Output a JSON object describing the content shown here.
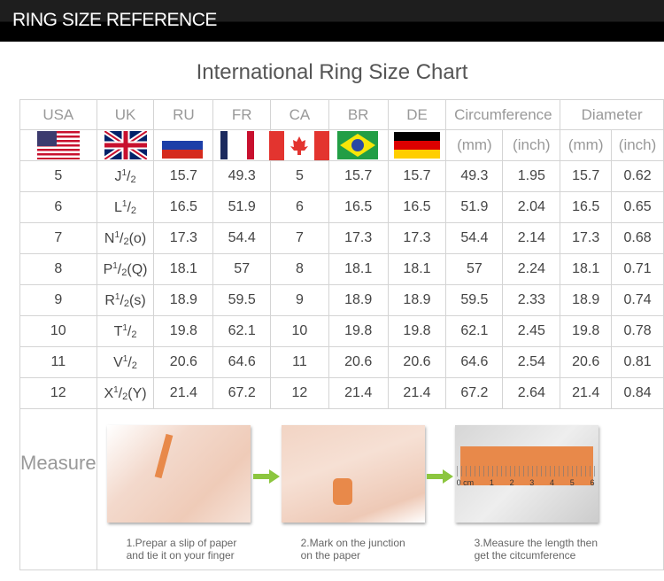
{
  "header": {
    "title": "RING SIZE REFERENCE"
  },
  "chart_title": "International Ring Size Chart",
  "columns": [
    "USA",
    "UK",
    "RU",
    "FR",
    "CA",
    "BR",
    "DE",
    "Circumference",
    "Diameter"
  ],
  "units": {
    "mm": "(mm)",
    "inch": "(inch)"
  },
  "flags": [
    "us-flag",
    "uk-flag",
    "russia-flag",
    "france-flag",
    "canada-flag",
    "brazil-flag",
    "germany-flag"
  ],
  "rows": [
    {
      "usa": "5",
      "uk": {
        "letter": "J",
        "num": "1",
        "den": "2",
        "suffix": ""
      },
      "ru": "15.7",
      "fr": "49.3",
      "ca": "5",
      "br": "15.7",
      "de": "15.7",
      "circ_mm": "49.3",
      "circ_in": "1.95",
      "dia_mm": "15.7",
      "dia_in": "0.62"
    },
    {
      "usa": "6",
      "uk": {
        "letter": "L",
        "num": "1",
        "den": "2",
        "suffix": ""
      },
      "ru": "16.5",
      "fr": "51.9",
      "ca": "6",
      "br": "16.5",
      "de": "16.5",
      "circ_mm": "51.9",
      "circ_in": "2.04",
      "dia_mm": "16.5",
      "dia_in": "0.65"
    },
    {
      "usa": "7",
      "uk": {
        "letter": "N",
        "num": "1",
        "den": "2",
        "suffix": "(o)"
      },
      "ru": "17.3",
      "fr": "54.4",
      "ca": "7",
      "br": "17.3",
      "de": "17.3",
      "circ_mm": "54.4",
      "circ_in": "2.14",
      "dia_mm": "17.3",
      "dia_in": "0.68"
    },
    {
      "usa": "8",
      "uk": {
        "letter": "P",
        "num": "1",
        "den": "2",
        "suffix": "(Q)"
      },
      "ru": "18.1",
      "fr": "57",
      "ca": "8",
      "br": "18.1",
      "de": "18.1",
      "circ_mm": "57",
      "circ_in": "2.24",
      "dia_mm": "18.1",
      "dia_in": "0.71"
    },
    {
      "usa": "9",
      "uk": {
        "letter": "R",
        "num": "1",
        "den": "2",
        "suffix": "(s)"
      },
      "ru": "18.9",
      "fr": "59.5",
      "ca": "9",
      "br": "18.9",
      "de": "18.9",
      "circ_mm": "59.5",
      "circ_in": "2.33",
      "dia_mm": "18.9",
      "dia_in": "0.74"
    },
    {
      "usa": "10",
      "uk": {
        "letter": "T",
        "num": "1",
        "den": "2",
        "suffix": ""
      },
      "ru": "19.8",
      "fr": "62.1",
      "ca": "10",
      "br": "19.8",
      "de": "19.8",
      "circ_mm": "62.1",
      "circ_in": "2.45",
      "dia_mm": "19.8",
      "dia_in": "0.78"
    },
    {
      "usa": "11",
      "uk": {
        "letter": "V",
        "num": "1",
        "den": "2",
        "suffix": ""
      },
      "ru": "20.6",
      "fr": "64.6",
      "ca": "11",
      "br": "20.6",
      "de": "20.6",
      "circ_mm": "64.6",
      "circ_in": "2.54",
      "dia_mm": "20.6",
      "dia_in": "0.81"
    },
    {
      "usa": "12",
      "uk": {
        "letter": "X",
        "num": "1",
        "den": "2",
        "suffix": "(Y)"
      },
      "ru": "21.4",
      "fr": "67.2",
      "ca": "12",
      "br": "21.4",
      "de": "21.4",
      "circ_mm": "67.2",
      "circ_in": "2.64",
      "dia_mm": "21.4",
      "dia_in": "0.84"
    }
  ],
  "measure": {
    "label": "Measure",
    "steps": [
      {
        "line1": "1.Prepar a slip of paper",
        "line2": "and tie it on your finger"
      },
      {
        "line1": "2.Mark on the junction",
        "line2": "on the paper"
      },
      {
        "line1": "3.Measure the length then",
        "line2": "get the citcumference"
      }
    ],
    "ruler_labels": [
      "0 cm",
      "1",
      "2",
      "3",
      "4",
      "5",
      "6"
    ]
  },
  "colors": {
    "arrow": "#8cc63f",
    "paper": "#e8894a"
  }
}
